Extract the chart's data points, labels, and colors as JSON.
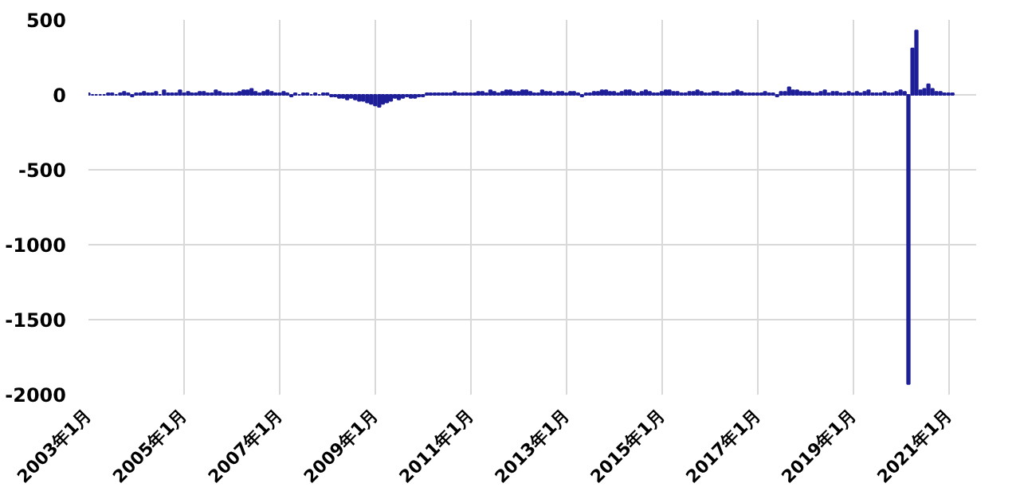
{
  "chart_data": {
    "type": "bar",
    "x": [
      "2003-01",
      "2003-02",
      "2003-03",
      "2003-04",
      "2003-05",
      "2003-06",
      "2003-07",
      "2003-08",
      "2003-09",
      "2003-10",
      "2003-11",
      "2003-12",
      "2004-01",
      "2004-02",
      "2004-03",
      "2004-04",
      "2004-05",
      "2004-06",
      "2004-07",
      "2004-08",
      "2004-09",
      "2004-10",
      "2004-11",
      "2004-12",
      "2005-01",
      "2005-02",
      "2005-03",
      "2005-04",
      "2005-05",
      "2005-06",
      "2005-07",
      "2005-08",
      "2005-09",
      "2005-10",
      "2005-11",
      "2005-12",
      "2006-01",
      "2006-02",
      "2006-03",
      "2006-04",
      "2006-05",
      "2006-06",
      "2006-07",
      "2006-08",
      "2006-09",
      "2006-10",
      "2006-11",
      "2006-12",
      "2007-01",
      "2007-02",
      "2007-03",
      "2007-04",
      "2007-05",
      "2007-06",
      "2007-07",
      "2007-08",
      "2007-09",
      "2007-10",
      "2007-11",
      "2007-12",
      "2008-01",
      "2008-02",
      "2008-03",
      "2008-04",
      "2008-05",
      "2008-06",
      "2008-07",
      "2008-08",
      "2008-09",
      "2008-10",
      "2008-11",
      "2008-12",
      "2009-01",
      "2009-02",
      "2009-03",
      "2009-04",
      "2009-05",
      "2009-06",
      "2009-07",
      "2009-08",
      "2009-09",
      "2009-10",
      "2009-11",
      "2009-12",
      "2010-01",
      "2010-02",
      "2010-03",
      "2010-04",
      "2010-05",
      "2010-06",
      "2010-07",
      "2010-08",
      "2010-09",
      "2010-10",
      "2010-11",
      "2010-12",
      "2011-01",
      "2011-02",
      "2011-03",
      "2011-04",
      "2011-05",
      "2011-06",
      "2011-07",
      "2011-08",
      "2011-09",
      "2011-10",
      "2011-11",
      "2011-12",
      "2012-01",
      "2012-02",
      "2012-03",
      "2012-04",
      "2012-05",
      "2012-06",
      "2012-07",
      "2012-08",
      "2012-09",
      "2012-10",
      "2012-11",
      "2012-12",
      "2013-01",
      "2013-02",
      "2013-03",
      "2013-04",
      "2013-05",
      "2013-06",
      "2013-07",
      "2013-08",
      "2013-09",
      "2013-10",
      "2013-11",
      "2013-12",
      "2014-01",
      "2014-02",
      "2014-03",
      "2014-04",
      "2014-05",
      "2014-06",
      "2014-07",
      "2014-08",
      "2014-09",
      "2014-10",
      "2014-11",
      "2014-12",
      "2015-01",
      "2015-02",
      "2015-03",
      "2015-04",
      "2015-05",
      "2015-06",
      "2015-07",
      "2015-08",
      "2015-09",
      "2015-10",
      "2015-11",
      "2015-12",
      "2016-01",
      "2016-02",
      "2016-03",
      "2016-04",
      "2016-05",
      "2016-06",
      "2016-07",
      "2016-08",
      "2016-09",
      "2016-10",
      "2016-11",
      "2016-12",
      "2017-01",
      "2017-02",
      "2017-03",
      "2017-04",
      "2017-05",
      "2017-06",
      "2017-07",
      "2017-08",
      "2017-09",
      "2017-10",
      "2017-11",
      "2017-12",
      "2018-01",
      "2018-02",
      "2018-03",
      "2018-04",
      "2018-05",
      "2018-06",
      "2018-07",
      "2018-08",
      "2018-09",
      "2018-10",
      "2018-11",
      "2018-12",
      "2019-01",
      "2019-02",
      "2019-03",
      "2019-04",
      "2019-05",
      "2019-06",
      "2019-07",
      "2019-08",
      "2019-09",
      "2019-10",
      "2019-11",
      "2019-12",
      "2020-01",
      "2020-02",
      "2020-03",
      "2020-04",
      "2020-05",
      "2020-06",
      "2020-07",
      "2020-08",
      "2020-09",
      "2020-10",
      "2020-11",
      "2020-12",
      "2021-01",
      "2021-02"
    ],
    "values": [
      10,
      0,
      0,
      0,
      0,
      10,
      10,
      0,
      10,
      20,
      10,
      -10,
      10,
      10,
      20,
      10,
      10,
      20,
      0,
      30,
      10,
      10,
      10,
      30,
      10,
      20,
      10,
      10,
      20,
      20,
      10,
      10,
      30,
      20,
      10,
      10,
      10,
      10,
      20,
      30,
      30,
      40,
      20,
      10,
      20,
      30,
      20,
      10,
      10,
      20,
      10,
      -10,
      10,
      0,
      10,
      10,
      0,
      10,
      0,
      10,
      10,
      -10,
      -10,
      -20,
      -20,
      -30,
      -20,
      -30,
      -40,
      -40,
      -50,
      -60,
      -70,
      -80,
      -60,
      -50,
      -40,
      -20,
      -30,
      -20,
      -10,
      -20,
      -20,
      -10,
      -10,
      10,
      10,
      10,
      10,
      10,
      10,
      10,
      20,
      10,
      10,
      10,
      10,
      10,
      20,
      20,
      10,
      30,
      20,
      10,
      20,
      30,
      30,
      20,
      20,
      30,
      30,
      20,
      10,
      10,
      30,
      20,
      20,
      10,
      20,
      20,
      10,
      20,
      20,
      10,
      -10,
      10,
      10,
      20,
      20,
      30,
      30,
      20,
      20,
      10,
      20,
      30,
      30,
      20,
      10,
      20,
      30,
      20,
      10,
      10,
      20,
      30,
      30,
      20,
      20,
      10,
      10,
      20,
      20,
      30,
      20,
      10,
      10,
      20,
      20,
      10,
      10,
      10,
      20,
      30,
      20,
      10,
      10,
      10,
      10,
      10,
      20,
      10,
      10,
      -10,
      20,
      20,
      50,
      30,
      30,
      20,
      20,
      20,
      10,
      10,
      20,
      30,
      10,
      20,
      20,
      10,
      10,
      20,
      10,
      20,
      10,
      20,
      30,
      10,
      10,
      10,
      20,
      10,
      10,
      20,
      30,
      20,
      -1930,
      310,
      430,
      30,
      40,
      70,
      40,
      20,
      20,
      10,
      10,
      10
    ],
    "color": "#1f1f99",
    "xlim": [
      "2003-01",
      "2021-08"
    ],
    "xticks": [
      {
        "value": "2003-01",
        "label": "2003年1月"
      },
      {
        "value": "2005-01",
        "label": "2005年1月"
      },
      {
        "value": "2007-01",
        "label": "2007年1月"
      },
      {
        "value": "2009-01",
        "label": "2009年1月"
      },
      {
        "value": "2011-01",
        "label": "2011年1月"
      },
      {
        "value": "2013-01",
        "label": "2013年1月"
      },
      {
        "value": "2015-01",
        "label": "2015年1月"
      },
      {
        "value": "2017-01",
        "label": "2017年1月"
      },
      {
        "value": "2019-01",
        "label": "2019年1月"
      },
      {
        "value": "2021-01",
        "label": "2021年1月"
      }
    ],
    "ylim": [
      -2000,
      500
    ],
    "yticks": [
      500,
      0,
      -500,
      -1000,
      -1500,
      -2000
    ],
    "grid": true
  }
}
